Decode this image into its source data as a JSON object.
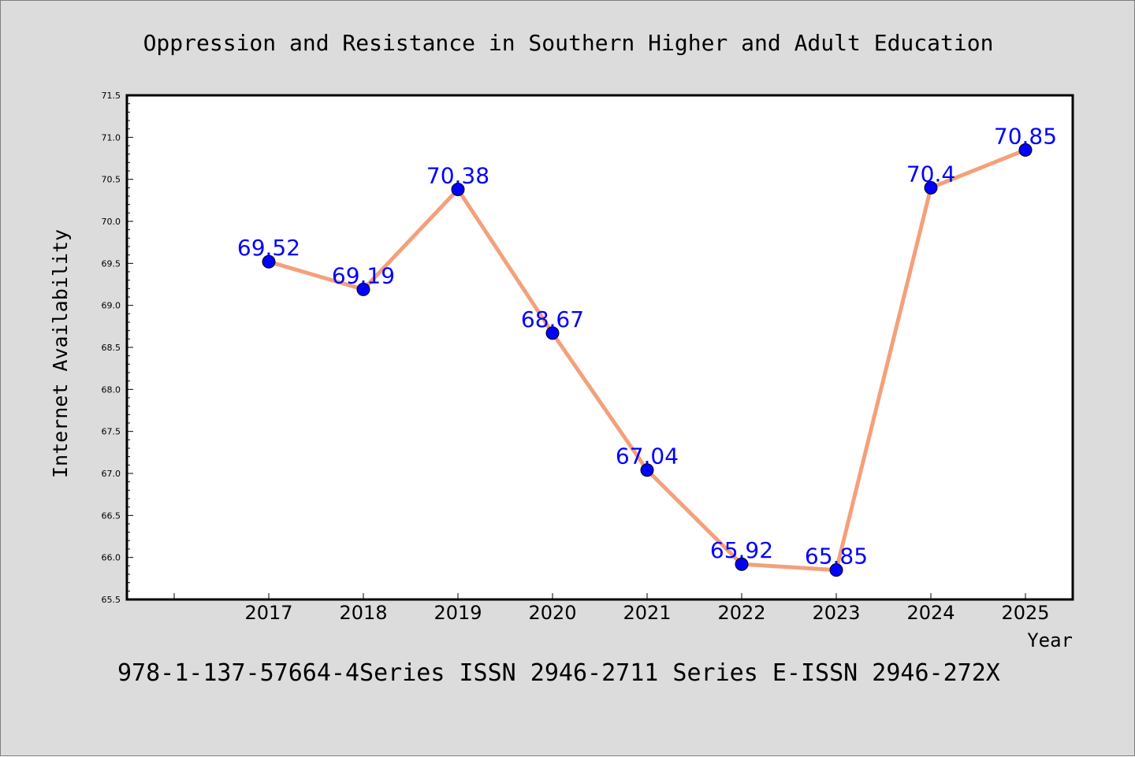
{
  "chart_data": {
    "type": "line",
    "title": "Oppression and Resistance in Southern Higher and Adult Education",
    "subtitle": "978-1-137-57664-4Series ISSN 2946-2711 Series E-ISSN 2946-272X",
    "xlabel": "Year",
    "ylabel": "Internet Availability",
    "x": [
      "2017",
      "2018",
      "2019",
      "2020",
      "2021",
      "2022",
      "2023",
      "2024",
      "2025"
    ],
    "series": [
      {
        "values": [
          69.52,
          69.19,
          70.38,
          68.67,
          67.04,
          65.92,
          65.85,
          70.4,
          70.85
        ],
        "data_labels": [
          "69.52",
          "69.19",
          "70.38",
          "68.67",
          "67.04",
          "65.92",
          "65.85",
          "70.4",
          "70.85"
        ],
        "line_color": "#f4a07a",
        "marker_color": "#0000ff",
        "label_color": "#0000ff"
      }
    ],
    "ylim": [
      65.5,
      71.5
    ],
    "yticks": [
      "65.5",
      "66.0",
      "66.5",
      "67.0",
      "67.5",
      "68.0",
      "68.5",
      "69.0",
      "69.5",
      "70.0",
      "70.5",
      "71.0",
      "71.5"
    ],
    "grid": false,
    "legend": "none",
    "background": "#dcdcdc",
    "plot_background": "#ffffff"
  }
}
